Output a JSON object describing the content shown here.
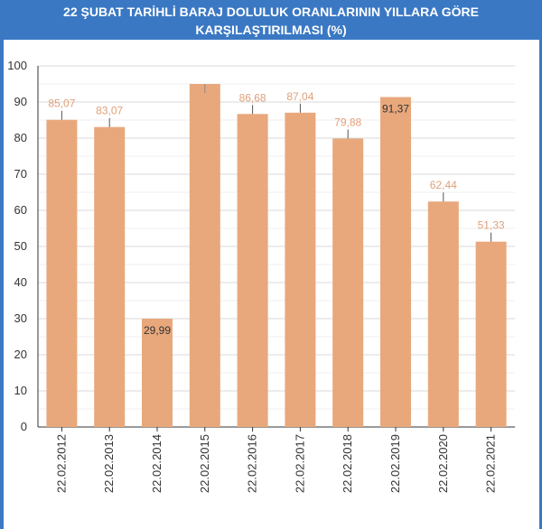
{
  "header": {
    "title_line1": "22 ŞUBAT TARİHLİ BARAJ DOLULUK ORANLARININ YILLARA GÖRE",
    "title_line2": "KARŞILAŞTIRILMASI (%)"
  },
  "colors": {
    "frame": "#3a78c3",
    "bar": "#e8a87c",
    "label_outside": "#e0a07a",
    "label_inside": "#333333",
    "grid": "#d9d9d9"
  },
  "chart_data": {
    "type": "bar",
    "title": "22 ŞUBAT TARİHLİ BARAJ DOLULUK ORANLARININ YILLARA GÖRE KARŞILAŞTIRILMASI (%)",
    "xlabel": "",
    "ylabel": "",
    "ylim": [
      0,
      100
    ],
    "yticks": [
      0,
      10,
      20,
      30,
      40,
      50,
      60,
      70,
      80,
      90,
      100
    ],
    "grid": true,
    "categories": [
      "22.02.2012",
      "22.02.2013",
      "22.02.2014",
      "22.02.2015",
      "22.02.2016",
      "22.02.2017",
      "22.02.2018",
      "22.02.2019",
      "22.02.2020",
      "22.02.2021"
    ],
    "values": [
      85.07,
      83.07,
      29.99,
      95.0,
      86.68,
      87.04,
      79.88,
      91.37,
      62.44,
      51.33
    ],
    "data_labels": [
      "85,07",
      "83,07",
      "29,99",
      "",
      "86,68",
      "87,04",
      "79,88",
      "91,37",
      "62,44",
      "51,33"
    ]
  }
}
